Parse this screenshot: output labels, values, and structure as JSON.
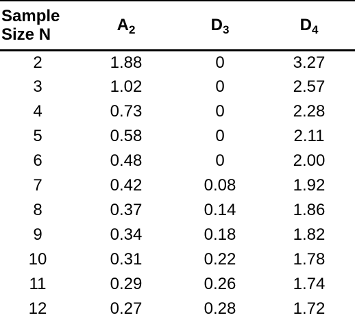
{
  "table": {
    "headers": {
      "col1_line1": "Sample",
      "col1_line2": "Size N",
      "col2_main": "A",
      "col2_sub": "2",
      "col3_main": "D",
      "col3_sub": "3",
      "col4_main": "D",
      "col4_sub": "4"
    },
    "rows": [
      [
        "2",
        "1.88",
        "0",
        "3.27"
      ],
      [
        "3",
        "1.02",
        "0",
        "2.57"
      ],
      [
        "4",
        "0.73",
        "0",
        "2.28"
      ],
      [
        "5",
        "0.58",
        "0",
        "2.11"
      ],
      [
        "6",
        "0.48",
        "0",
        "2.00"
      ],
      [
        "7",
        "0.42",
        "0.08",
        "1.92"
      ],
      [
        "8",
        "0.37",
        "0.14",
        "1.86"
      ],
      [
        "9",
        "0.34",
        "0.18",
        "1.82"
      ],
      [
        "10",
        "0.31",
        "0.22",
        "1.78"
      ],
      [
        "11",
        "0.29",
        "0.26",
        "1.74"
      ],
      [
        "12",
        "0.27",
        "0.28",
        "1.72"
      ]
    ]
  }
}
